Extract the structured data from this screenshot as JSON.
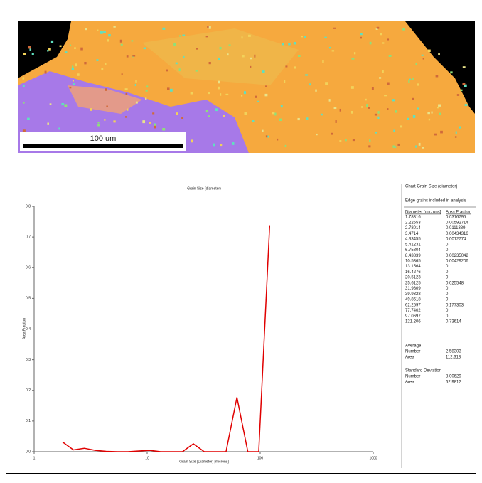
{
  "image": {
    "scale_label": "100 um"
  },
  "chart_data": {
    "type": "line",
    "title": "Grain Size (diameter)",
    "x_label": "Grain Size [Diameter] [microns]",
    "y_label": "Area Fraction",
    "x": [
      1.78316,
      2.22653,
      2.78014,
      3.4714,
      4.33455,
      5.41231,
      6.75804,
      8.43839,
      10.5365,
      13.1564,
      16.4276,
      20.5123,
      25.6125,
      31.9809,
      39.9328,
      49.8618,
      62.2597,
      77.7402,
      97.0697,
      121.206
    ],
    "values": [
      0.0316795,
      0.00592714,
      0.0111389,
      0.00434316,
      0.0012774,
      0,
      0,
      0.00235042,
      0.00429206,
      0,
      0,
      0,
      0.025548,
      0,
      0,
      0,
      0.177303,
      0,
      0,
      0.73614
    ],
    "color": "#e00000",
    "x_log": true,
    "xlim": [
      1,
      1000
    ],
    "xticks": [
      1,
      10,
      100,
      1000
    ],
    "ylim": [
      0,
      0.8
    ],
    "yticks": [
      {
        "value": 0,
        "label": "0.0"
      },
      0.1,
      0.2,
      0.3,
      0.4,
      0.5,
      0.6,
      0.7,
      0.8
    ]
  },
  "panel": {
    "heading": "Chart  Grain Size (diameter)",
    "note": "Edge grains included in analysis",
    "columns": [
      "Diameter [microns]",
      "Area Fraction"
    ],
    "average": {
      "title": "Average",
      "rows": [
        [
          "Number",
          2.58303
        ],
        [
          "Area",
          112.313
        ]
      ]
    },
    "deviation": {
      "title": "Standard Deviation",
      "rows": [
        [
          "Number",
          8.00629
        ],
        [
          "Area",
          62.9812
        ]
      ]
    }
  }
}
